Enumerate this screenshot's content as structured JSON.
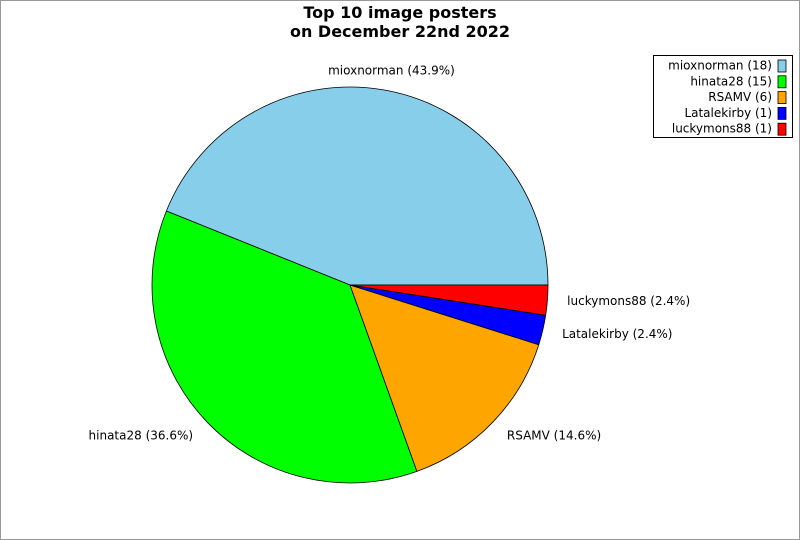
{
  "chart_data": {
    "type": "pie",
    "title": "Top 10 image posters\non December 22nd 2022",
    "values": [
      18,
      15,
      6,
      1,
      1
    ],
    "legend_labels": [
      "mioxnorman (18)",
      "hinata28 (15)",
      "RSAMV (6)",
      "Latalekirby (1)",
      "luckymons88 (1)"
    ],
    "slice_labels": [
      "mioxnorman (43.9%)",
      "hinata28 (36.6%)",
      "RSAMV (14.6%)",
      "Latalekirby (2.4%)",
      "luckymons88 (2.4%)"
    ],
    "colors": [
      "#87ceeb",
      "#00ff00",
      "#ffa500",
      "#0000ff",
      "#ff0000"
    ],
    "legend": "upper right"
  }
}
